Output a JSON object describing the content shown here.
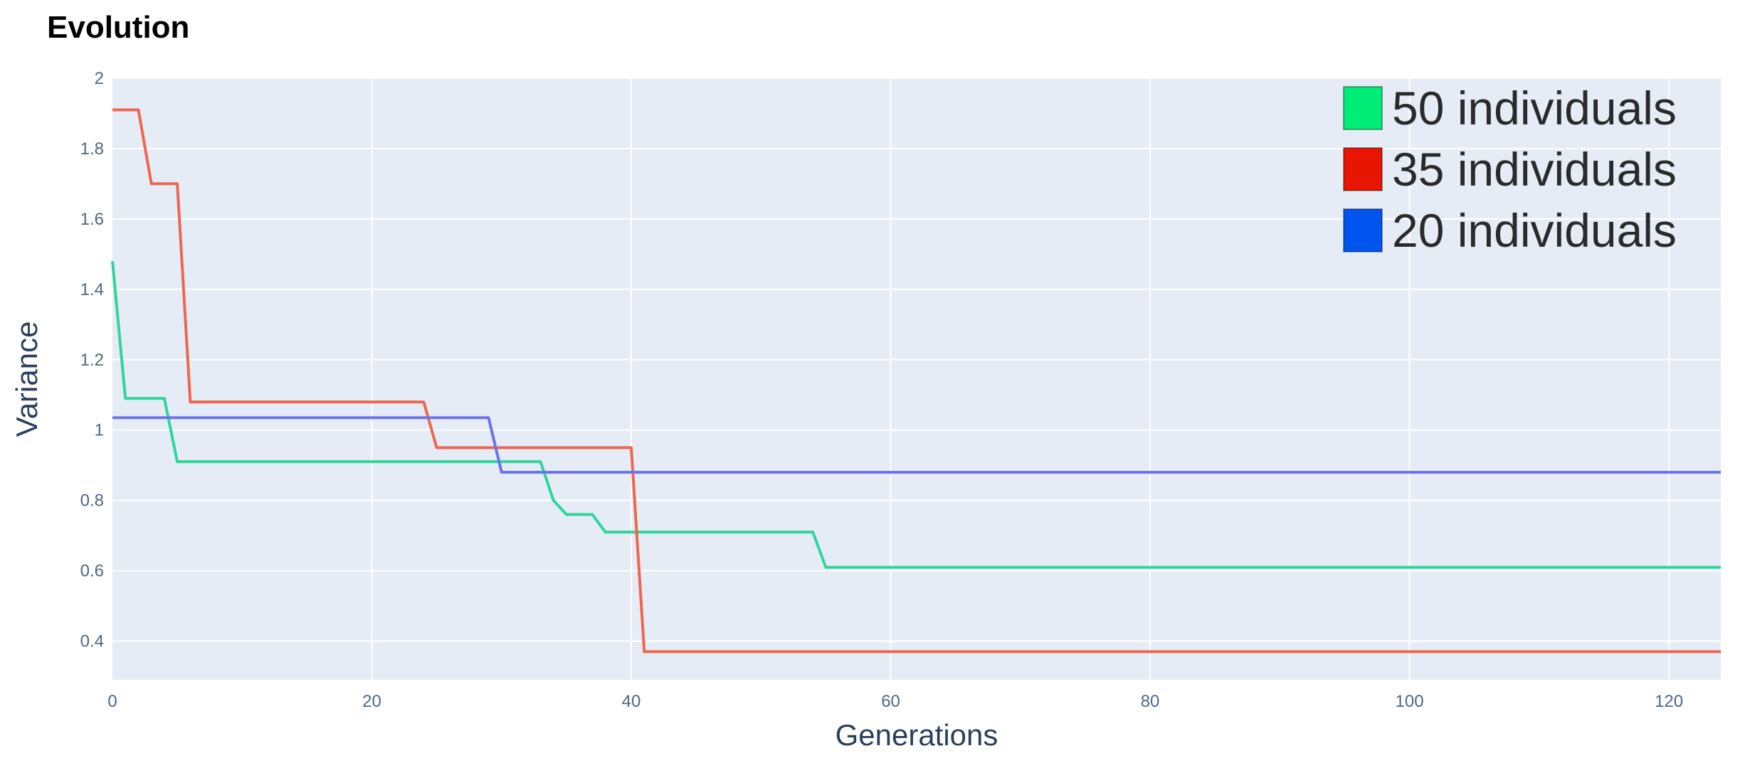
{
  "chart_data": {
    "type": "line",
    "title": "Evolution",
    "xlabel": "Generations",
    "ylabel": "Variance",
    "xlim": [
      0,
      124
    ],
    "ylim": [
      0.29,
      2.0
    ],
    "xticks": [
      0,
      20,
      40,
      60,
      80,
      100,
      120
    ],
    "yticks": [
      0.4,
      0.6,
      0.8,
      1.0,
      1.2,
      1.4,
      1.6,
      1.8,
      2.0
    ],
    "xtick_labels": [
      "0",
      "20",
      "40",
      "60",
      "80",
      "100",
      "120"
    ],
    "ytick_labels": [
      "0.4",
      "0.6",
      "0.8",
      "1",
      "1.2",
      "1.4",
      "1.6",
      "1.8",
      "2"
    ],
    "grid": true,
    "legend_position": "top-right",
    "background_color": "#e5ecf6",
    "series": [
      {
        "name": "50 individuals",
        "color": "#2fd69a",
        "legend_color": "#00ee77",
        "x": [
          0,
          1,
          4,
          5,
          33,
          34,
          35,
          37,
          38,
          54,
          55,
          124
        ],
        "y": [
          1.48,
          1.09,
          1.09,
          0.91,
          0.91,
          0.8,
          0.76,
          0.76,
          0.71,
          0.71,
          0.61,
          0.61
        ]
      },
      {
        "name": "35 individuals",
        "color": "#ef6650",
        "legend_color": "#e81500",
        "x": [
          0,
          2,
          3,
          5,
          6,
          24,
          25,
          40,
          41,
          124
        ],
        "y": [
          1.91,
          1.91,
          1.7,
          1.7,
          1.08,
          1.08,
          0.95,
          0.95,
          0.37,
          0.37
        ]
      },
      {
        "name": "20 individuals",
        "color": "#6c72ee",
        "legend_color": "#0055ee",
        "x": [
          0,
          29,
          30,
          124
        ],
        "y": [
          1.035,
          1.035,
          0.88,
          0.88
        ]
      }
    ]
  }
}
